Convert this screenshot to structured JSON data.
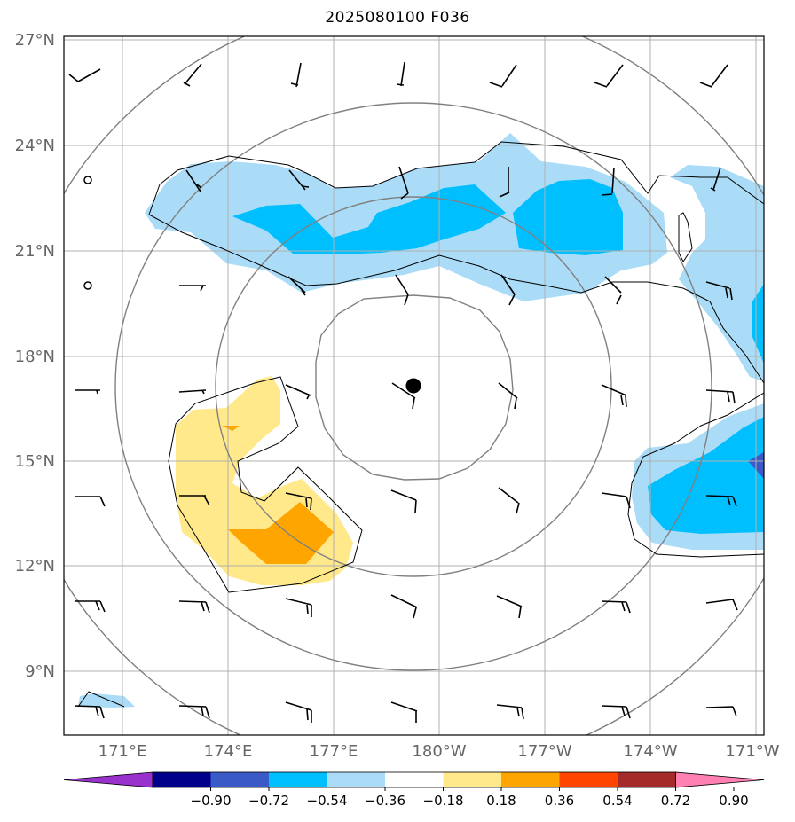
{
  "title": "2025080100 F036",
  "lat_labels": [
    "27°N",
    "24°N",
    "21°N",
    "18°N",
    "15°N",
    "12°N",
    "9°N"
  ],
  "lon_labels": [
    "171°E",
    "174°E",
    "177°E",
    "180°W",
    "177°W",
    "174°W",
    "171°W"
  ],
  "colorbar": {
    "ticks": [
      "−0.90",
      "−0.72",
      "−0.54",
      "−0.36",
      "−0.18",
      "0.18",
      "0.36",
      "0.54",
      "0.72",
      "0.90"
    ],
    "colors": [
      "#9932cc",
      "#00008b",
      "#3a5bc7",
      "#00bfff",
      "#aadcf8",
      "#ffffff",
      "#ffe98a",
      "#ffa500",
      "#ff4500",
      "#a52a2a",
      "#ff80b3"
    ]
  },
  "colors": {
    "neg_light": "#aadcf8",
    "neg_mid": "#00bfff",
    "neg_dark": "#3a5bc7",
    "pos_light": "#ffe98a",
    "pos_mid": "#ffa500",
    "gridline": "#b0b0b0",
    "range_rings": "#808080"
  },
  "storm_center": {
    "lat": 17.2,
    "lon": 179.3
  }
}
